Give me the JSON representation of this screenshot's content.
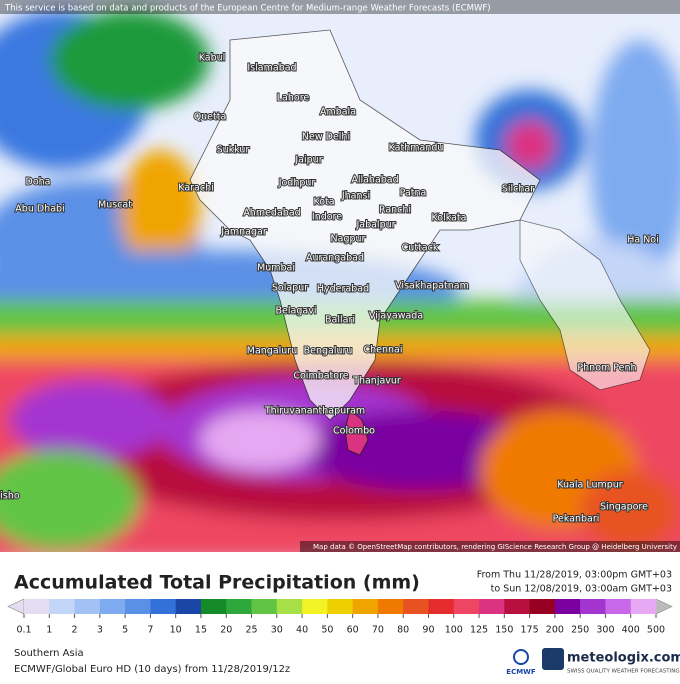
{
  "notice": "This service is based on data and products of the European Centre for Medium-range Weather Forecasts (ECMWF)",
  "cities": [
    "Kabul",
    "Islamabad",
    "Lahore",
    "Ambala",
    "Quetta",
    "New Delhi",
    "Kathmandu",
    "Sukkur",
    "Jaipur",
    "Allahabad",
    "Jodhpur",
    "Karachi",
    "Patna",
    "Silchar",
    "Jhansi",
    "Doha",
    "Kota",
    "Muscat",
    "Ahmedabad",
    "Indore",
    "Ranchi",
    "Abu Dhabi",
    "Kolkata",
    "Jabalpur",
    "Jamnagar",
    "Nagpur",
    "Cuttack",
    "Ha Noi",
    "Aurangabad",
    "Mumbai",
    "Visakhapatnam",
    "Solapur",
    "Hyderabad",
    "Belagavi",
    "Ballari",
    "Vijayawada",
    "Mangaluru",
    "Bengaluru",
    "Chennai",
    "Phnom Penh",
    "Coimbatore",
    "Thanjavur",
    "Thiruvananthapuram",
    "Colombo",
    "Kuala Lumpur",
    "Singapore",
    "Pekanbari",
    "isho"
  ],
  "attribution": "Map data © OpenStreetMap contributors, rendering GIScience Research Group @ Heidelberg University",
  "title": "Accumulated Total Precipitation (mm)",
  "period_from": "From Thu 11/28/2019, 03:00pm GMT+03",
  "period_to": "to Sun 12/08/2019, 03:00am GMT+03",
  "legend": {
    "ticks": [
      0.1,
      1,
      2,
      3,
      5,
      7,
      10,
      15,
      20,
      25,
      30,
      40,
      50,
      60,
      70,
      80,
      90,
      100,
      125,
      150,
      175,
      200,
      250,
      300,
      400,
      500
    ],
    "colors": [
      "#e4dcf0",
      "#c4d6f8",
      "#a2c2f6",
      "#7eaaf0",
      "#5a90e6",
      "#3272d8",
      "#1a46a8",
      "#148a28",
      "#2ea83a",
      "#62c444",
      "#a6e046",
      "#f2f224",
      "#eed000",
      "#f0a400",
      "#f07a00",
      "#e85222",
      "#e42c2c",
      "#ee4662",
      "#dc3282",
      "#b8103e",
      "#960022",
      "#7a00a0",
      "#a434d0",
      "#c868e8",
      "#e6a8f2"
    ]
  },
  "region": "Southern Asia",
  "model": "ECMWF/Global Euro HD (10 days)  from  11/28/2019/12z",
  "ecmwf_logo": "ECMWF",
  "brand": "meteologix.com",
  "brand_tagline": "SWISS QUALITY WEATHER FORECASTING"
}
